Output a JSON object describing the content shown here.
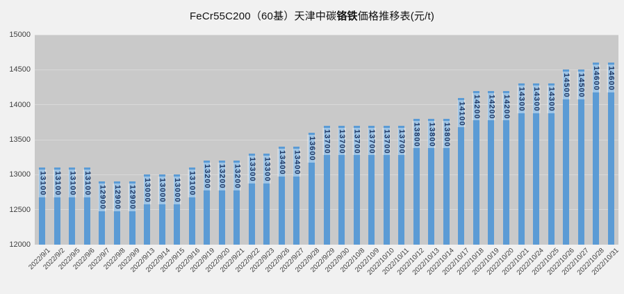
{
  "title": {
    "part1": "FeCr55C200（60基）天津中碳",
    "part2_bold": "铬铁",
    "part3": "価格推移表(元/t)"
  },
  "chart_data": {
    "type": "bar",
    "title": "FeCr55C200（60基）天津中碳铬铁価格推移表(元/t)",
    "xlabel": "",
    "ylabel": "",
    "ylim": [
      12000,
      15000
    ],
    "yticks": [
      12000,
      12500,
      13000,
      13500,
      14000,
      14500,
      15000
    ],
    "grid": true,
    "legend": "none",
    "data_labels": "inside-end, rotated 90° clockwise",
    "categories": [
      "2022/9/1",
      "2022/9/2",
      "2022/9/5",
      "2022/9/6",
      "2022/9/7",
      "2022/9/8",
      "2022/9/9",
      "2022/9/13",
      "2022/9/14",
      "2022/9/15",
      "2022/9/16",
      "2022/9/19",
      "2022/9/20",
      "2022/9/21",
      "2022/9/22",
      "2022/9/23",
      "2022/9/26",
      "2022/9/27",
      "2022/9/28",
      "2022/9/29",
      "2022/9/30",
      "2022/10/8",
      "2022/10/9",
      "2022/10/10",
      "2022/10/11",
      "2022/10/12",
      "2022/10/13",
      "2022/10/14",
      "2022/10/17",
      "2022/10/18",
      "2022/10/19",
      "2022/10/20",
      "2022/10/21",
      "2022/10/24",
      "2022/10/25",
      "2022/10/26",
      "2022/10/27",
      "2022/10/28",
      "2022/10/31"
    ],
    "values": [
      13100,
      13100,
      13100,
      13100,
      12900,
      12900,
      12900,
      13000,
      13000,
      13000,
      13100,
      13200,
      13200,
      13200,
      13300,
      13300,
      13400,
      13400,
      13600,
      13700,
      13700,
      13700,
      13700,
      13700,
      13700,
      13800,
      13800,
      13800,
      14100,
      14200,
      14200,
      14200,
      14300,
      14300,
      14300,
      14500,
      14500,
      14600,
      14600
    ],
    "colors": {
      "bar": "#5b9bd5",
      "bar_label_text": "#1f3864",
      "bar_label_bg": "rgba(255,255,255,0.42)",
      "plot_bg": "#c9c9c9",
      "page_bg": "#f1f1f1",
      "gridline": "#d9d9d9",
      "axis_text": "#3d3d3d"
    }
  }
}
